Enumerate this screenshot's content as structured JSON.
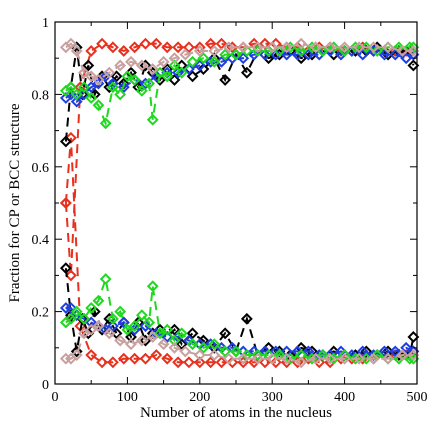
{
  "chart_data": {
    "type": "line",
    "title": "",
    "xlabel": "Number of atoms in the nucleus",
    "ylabel": "Fraction for CP or BCC structure",
    "xlim": [
      0,
      500
    ],
    "ylim": [
      0,
      1
    ],
    "x_ticks": [
      "0",
      "100",
      "200",
      "300",
      "400",
      "500"
    ],
    "y_ticks": [
      "0",
      "0.2",
      "0.4",
      "0.6",
      "0.8",
      "1"
    ],
    "grid": false,
    "legend": "none",
    "line_style": "dashed",
    "marker": "diamond",
    "series": [
      {
        "color": "#e8301e",
        "x": [
          15,
          22,
          35,
          50,
          65,
          80,
          95,
          110,
          125,
          140,
          155,
          170,
          185,
          200,
          215,
          230,
          245,
          260,
          275,
          290,
          305,
          320,
          335,
          350,
          365,
          380,
          395,
          410,
          425,
          440,
          455,
          470,
          485,
          495
        ],
        "cp": [
          0.5,
          0.3,
          0.82,
          0.92,
          0.94,
          0.93,
          0.92,
          0.93,
          0.94,
          0.94,
          0.93,
          0.93,
          0.93,
          0.93,
          0.94,
          0.94,
          0.93,
          0.93,
          0.94,
          0.94,
          0.94,
          0.93,
          0.93,
          0.92,
          0.93,
          0.93,
          0.92,
          0.92,
          0.93,
          0.92,
          0.92,
          0.92,
          0.92,
          0.91
        ],
        "bcc": [
          0.5,
          0.68,
          0.16,
          0.08,
          0.06,
          0.06,
          0.07,
          0.07,
          0.07,
          0.08,
          0.07,
          0.06,
          0.06,
          0.06,
          0.06,
          0.06,
          0.06,
          0.06,
          0.06,
          0.06,
          0.06,
          0.06,
          0.06,
          0.07,
          0.06,
          0.06,
          0.07,
          0.07,
          0.07,
          0.07,
          0.08,
          0.08,
          0.08,
          0.09
        ]
      },
      {
        "color": "#000000",
        "x": [
          15,
          22,
          30,
          38,
          46,
          55,
          65,
          75,
          85,
          95,
          105,
          115,
          125,
          135,
          145,
          155,
          165,
          175,
          190,
          205,
          220,
          235,
          250,
          265,
          280,
          295,
          310,
          325,
          340,
          355,
          370,
          385,
          400,
          415,
          430,
          445,
          460,
          475,
          490,
          495
        ],
        "cp": [
          0.67,
          0.82,
          0.93,
          0.8,
          0.88,
          0.8,
          0.85,
          0.82,
          0.85,
          0.83,
          0.86,
          0.82,
          0.88,
          0.86,
          0.84,
          0.87,
          0.84,
          0.88,
          0.85,
          0.87,
          0.9,
          0.84,
          0.91,
          0.86,
          0.92,
          0.9,
          0.91,
          0.92,
          0.9,
          0.91,
          0.92,
          0.91,
          0.92,
          0.92,
          0.92,
          0.93,
          0.91,
          0.92,
          0.92,
          0.88
        ],
        "bcc": [
          0.32,
          0.19,
          0.09,
          0.18,
          0.14,
          0.2,
          0.15,
          0.18,
          0.14,
          0.17,
          0.13,
          0.17,
          0.12,
          0.14,
          0.15,
          0.13,
          0.15,
          0.11,
          0.14,
          0.12,
          0.1,
          0.14,
          0.09,
          0.18,
          0.08,
          0.1,
          0.09,
          0.08,
          0.1,
          0.09,
          0.08,
          0.09,
          0.08,
          0.08,
          0.09,
          0.08,
          0.09,
          0.08,
          0.08,
          0.13
        ]
      },
      {
        "color": "#1f3fe0",
        "x": [
          15,
          22,
          30,
          40,
          50,
          60,
          70,
          80,
          95,
          110,
          125,
          140,
          155,
          170,
          185,
          200,
          215,
          230,
          245,
          260,
          275,
          290,
          305,
          320,
          335,
          350,
          365,
          380,
          395,
          410,
          425,
          440,
          455,
          470,
          485,
          495
        ],
        "cp": [
          0.79,
          0.8,
          0.78,
          0.8,
          0.82,
          0.83,
          0.85,
          0.83,
          0.82,
          0.84,
          0.83,
          0.85,
          0.86,
          0.86,
          0.87,
          0.88,
          0.89,
          0.89,
          0.9,
          0.9,
          0.91,
          0.91,
          0.91,
          0.91,
          0.91,
          0.91,
          0.91,
          0.92,
          0.91,
          0.92,
          0.91,
          0.92,
          0.91,
          0.91,
          0.9,
          0.91
        ],
        "bcc": [
          0.21,
          0.21,
          0.19,
          0.18,
          0.17,
          0.16,
          0.15,
          0.16,
          0.17,
          0.15,
          0.16,
          0.14,
          0.13,
          0.13,
          0.12,
          0.11,
          0.11,
          0.1,
          0.1,
          0.09,
          0.09,
          0.09,
          0.09,
          0.09,
          0.09,
          0.09,
          0.08,
          0.08,
          0.09,
          0.08,
          0.09,
          0.08,
          0.09,
          0.09,
          0.1,
          0.09
        ]
      },
      {
        "color": "#1fd81f",
        "x": [
          15,
          22,
          30,
          40,
          50,
          60,
          70,
          80,
          90,
          100,
          110,
          120,
          130,
          135,
          145,
          155,
          165,
          175,
          190,
          205,
          220,
          235,
          250,
          265,
          280,
          295,
          310,
          325,
          340,
          355,
          370,
          385,
          400,
          415,
          430,
          445,
          460,
          475,
          490,
          495
        ],
        "cp": [
          0.81,
          0.82,
          0.8,
          0.82,
          0.79,
          0.77,
          0.72,
          0.82,
          0.8,
          0.85,
          0.84,
          0.81,
          0.83,
          0.73,
          0.86,
          0.85,
          0.88,
          0.86,
          0.89,
          0.9,
          0.89,
          0.91,
          0.91,
          0.92,
          0.92,
          0.92,
          0.92,
          0.93,
          0.92,
          0.93,
          0.92,
          0.93,
          0.92,
          0.93,
          0.93,
          0.92,
          0.93,
          0.93,
          0.93,
          0.93
        ],
        "bcc": [
          0.17,
          0.18,
          0.2,
          0.18,
          0.21,
          0.23,
          0.29,
          0.18,
          0.2,
          0.15,
          0.16,
          0.19,
          0.17,
          0.27,
          0.14,
          0.15,
          0.12,
          0.14,
          0.11,
          0.1,
          0.11,
          0.09,
          0.09,
          0.08,
          0.08,
          0.08,
          0.08,
          0.07,
          0.08,
          0.07,
          0.08,
          0.07,
          0.08,
          0.07,
          0.07,
          0.08,
          0.07,
          0.07,
          0.07,
          0.07
        ]
      },
      {
        "color": "#c8a0a0",
        "x": [
          15,
          22,
          30,
          40,
          50,
          60,
          75,
          90,
          105,
          120,
          135,
          150,
          165,
          180,
          200,
          220,
          240,
          260,
          280,
          300,
          320,
          340,
          360,
          380,
          400,
          420,
          440,
          460,
          480,
          495
        ],
        "cp": [
          0.93,
          0.94,
          0.92,
          0.86,
          0.85,
          0.84,
          0.86,
          0.88,
          0.89,
          0.88,
          0.87,
          0.89,
          0.9,
          0.91,
          0.92,
          0.92,
          0.93,
          0.93,
          0.93,
          0.93,
          0.93,
          0.94,
          0.93,
          0.93,
          0.93,
          0.93,
          0.93,
          0.93,
          0.92,
          0.92
        ],
        "bcc": [
          0.07,
          0.07,
          0.08,
          0.14,
          0.15,
          0.16,
          0.14,
          0.12,
          0.11,
          0.12,
          0.13,
          0.11,
          0.1,
          0.09,
          0.08,
          0.08,
          0.07,
          0.07,
          0.07,
          0.07,
          0.07,
          0.06,
          0.07,
          0.07,
          0.07,
          0.07,
          0.07,
          0.07,
          0.08,
          0.08
        ]
      }
    ]
  }
}
